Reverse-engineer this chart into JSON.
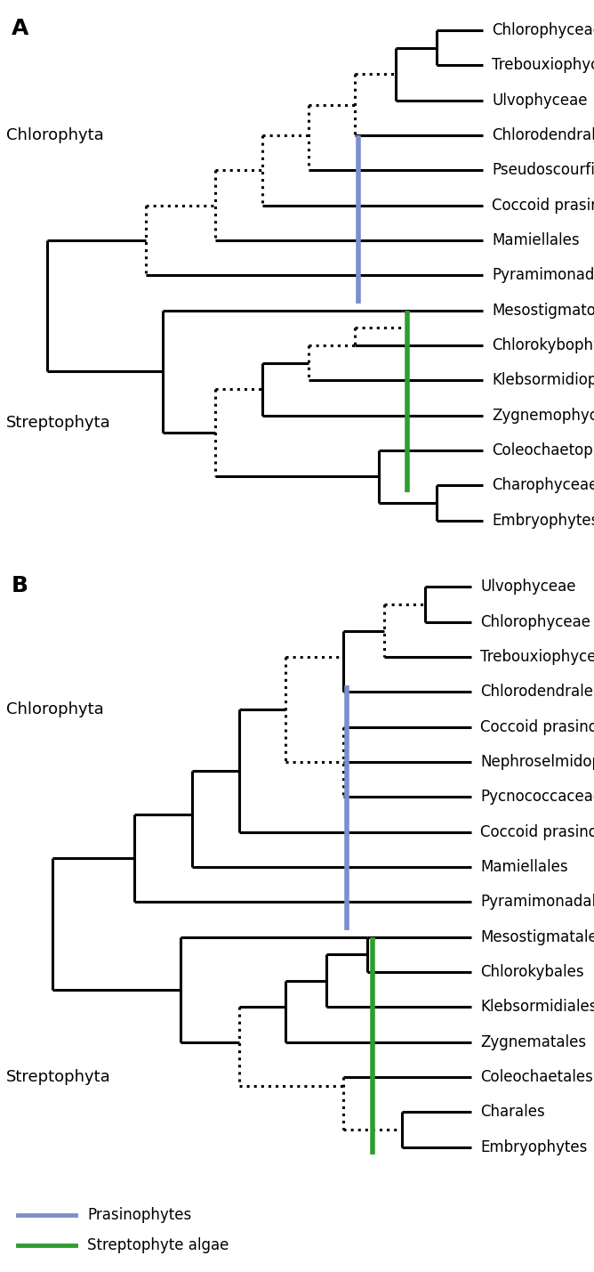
{
  "panel_A": {
    "taxa": [
      "Chlorophyceae",
      "Trebouxiophyceae",
      "Ulvophyceae",
      "Chlorodendrales",
      "Pseudoscourfieldiales",
      "Coccoid prasinophytes",
      "Mamiellales",
      "Pyramimonadales",
      "Mesostigmatophyceae",
      "Chlorokybophyceae",
      "Klebsormidiophyceae",
      "Zygnemophyceae",
      "Coleochaetophyceae",
      "Charophyceae",
      "Embryophytes"
    ]
  },
  "panel_B": {
    "taxa": [
      "Ulvophyceae",
      "Chlorophyceae",
      "Trebouxiophyceae",
      "Chlorodendrales",
      "Coccoid prasinophytes",
      "Nephroselmidophyceae",
      "Pycnococcaceae",
      "Coccoid prasinophytes",
      "Mamiellales",
      "Pyramimonadales",
      "Mesostigmatales",
      "Chlorokybales",
      "Klebsormidiales",
      "Zygnematales",
      "Coleochaetales",
      "Charales",
      "Embryophytes"
    ]
  },
  "blue_color": "#7b8fcc",
  "green_color": "#2e9e2e",
  "font_size": 12,
  "label_font_size": 13,
  "panel_label_size": 18,
  "lw": 2.2
}
